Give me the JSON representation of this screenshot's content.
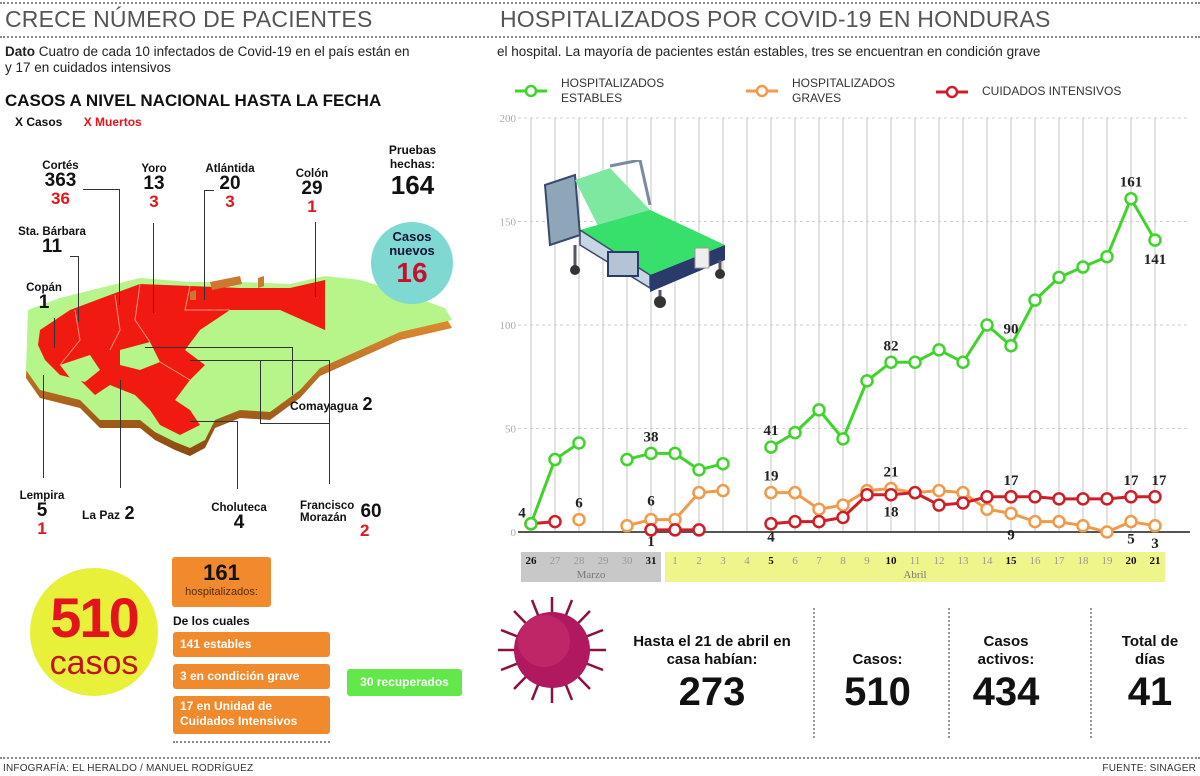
{
  "left_title": "CRECE NÚMERO DE PACIENTES",
  "right_title": "HOSPITALIZADOS POR COVID-19 EN HONDURAS",
  "dato": {
    "label": "Dato",
    "text_left": "Cuatro de cada 10 infectados de Covid-19 en el país están en",
    "text_left_line2": "y 17 en cuidados intensivos",
    "text_right": "el hospital. La mayoría de pacientes están estables, tres se encuentran en condición grave"
  },
  "map_section": {
    "heading": "CASOS A NIVEL NACIONAL HASTA  LA FECHA",
    "legend_cases": "X Casos",
    "legend_deaths": "X Muertos",
    "departments": [
      {
        "name": "Cortés",
        "cases": "363",
        "deaths": "36"
      },
      {
        "name": "Yoro",
        "cases": "13",
        "deaths": "3"
      },
      {
        "name": "Atlántida",
        "cases": "20",
        "deaths": "3"
      },
      {
        "name": "Colón",
        "cases": "29",
        "deaths": "1"
      },
      {
        "name": "Sta. Bárbara",
        "cases": "11",
        "deaths": ""
      },
      {
        "name": "Copán",
        "cases": "1",
        "deaths": ""
      },
      {
        "name": "Comayagua",
        "cases": "2",
        "deaths": ""
      },
      {
        "name": "Lempira",
        "cases": "5",
        "deaths": "1"
      },
      {
        "name": "La Paz",
        "cases": "2",
        "deaths": ""
      },
      {
        "name": "Choluteca",
        "cases": "4",
        "deaths": ""
      },
      {
        "name": "Francisco Morazán",
        "cases": "60",
        "deaths": "2"
      }
    ],
    "tests_label": "Pruebas hechas:",
    "tests_value": "164",
    "new_cases_label": "Casos nuevos",
    "new_cases_value": "16"
  },
  "summary": {
    "total_cases": "510",
    "total_cases_label": "casos",
    "hospitalized_value": "161",
    "hospitalized_label": "hospitalizados:",
    "of_which": "De los cuales",
    "stable": "141 estables",
    "grave": "3 en condición grave",
    "icu": "17 en Unidad de Cuidados Intensivos",
    "recovered": "30 recuperados"
  },
  "credit_left": "INFOGRAFÍA: EL HERALDO / MANUEL RODRÍGUEZ",
  "credit_right": "FUENTE: SINAGER",
  "bottom_stats": [
    {
      "label": "Hasta el 21 de abril en casa habían:",
      "value": "273"
    },
    {
      "label": "Casos:",
      "value": "510"
    },
    {
      "label": "Casos activos:",
      "value": "434"
    },
    {
      "label": "Total de días",
      "value": "41"
    }
  ],
  "colors": {
    "stable": "#3ed42a",
    "grave": "#f09a4a",
    "icu": "#d01e28",
    "red_map": "#f01a10",
    "green_map": "#b6f58a",
    "orange_box": "#f08a2c",
    "march_band": "#c8c8c8",
    "april_band": "#eef58a"
  },
  "chart_data": {
    "type": "line",
    "title": "HOSPITALIZADOS POR COVID-19 EN HONDURAS",
    "xlabel": "",
    "ylabel": "",
    "ylim": [
      0,
      200
    ],
    "yticks": [
      0,
      50,
      100,
      150,
      200
    ],
    "grid": true,
    "legend_position": "top",
    "x": [
      "26",
      "27",
      "28",
      "29",
      "30",
      "31",
      "1",
      "2",
      "3",
      "4",
      "5",
      "6",
      "7",
      "8",
      "9",
      "10",
      "11",
      "12",
      "13",
      "14",
      "15",
      "16",
      "17",
      "18",
      "19",
      "20",
      "21"
    ],
    "bold_ticks": [
      "26",
      "31",
      "5",
      "10",
      "15",
      "20",
      "21"
    ],
    "month_labels": [
      {
        "label": "Marzo",
        "from": "26",
        "to": "31"
      },
      {
        "label": "Abril",
        "from": "1",
        "to": "21"
      }
    ],
    "series": [
      {
        "name": "HOSPITALIZADOS ESTABLES",
        "color": "#3ed42a",
        "values": [
          4,
          35,
          43,
          null,
          35,
          38,
          38,
          30,
          33,
          null,
          41,
          48,
          59,
          45,
          73,
          82,
          82,
          88,
          82,
          100,
          90,
          112,
          123,
          128,
          133,
          161,
          141
        ]
      },
      {
        "name": "HOSPITALIZADOS GRAVES",
        "color": "#f09a4a",
        "values": [
          null,
          null,
          6,
          null,
          3,
          6,
          6,
          19,
          20,
          null,
          19,
          19,
          11,
          13,
          20,
          21,
          19,
          20,
          19,
          11,
          9,
          5,
          5,
          3,
          0,
          5,
          3
        ]
      },
      {
        "name": "CUIDADOS INTENSIVOS",
        "color": "#d01e28",
        "values": [
          4,
          5,
          null,
          null,
          null,
          1,
          1,
          1,
          null,
          null,
          4,
          5,
          5,
          7,
          18,
          18,
          19,
          13,
          14,
          17,
          17,
          17,
          16,
          16,
          16,
          17,
          17
        ]
      }
    ],
    "annotations": [
      {
        "x": "26",
        "text": "4"
      },
      {
        "x": "28",
        "text": "6"
      },
      {
        "x": "31",
        "text": "38"
      },
      {
        "x": "31",
        "text": "6"
      },
      {
        "x": "31",
        "text": "1"
      },
      {
        "x": "5",
        "text": "41"
      },
      {
        "x": "5",
        "text": "19"
      },
      {
        "x": "5",
        "text": "4"
      },
      {
        "x": "10",
        "text": "82"
      },
      {
        "x": "10",
        "text": "21"
      },
      {
        "x": "10",
        "text": "18"
      },
      {
        "x": "15",
        "text": "90"
      },
      {
        "x": "15",
        "text": "17"
      },
      {
        "x": "15",
        "text": "9"
      },
      {
        "x": "20",
        "text": "161"
      },
      {
        "x": "20",
        "text": "17"
      },
      {
        "x": "20",
        "text": "5"
      },
      {
        "x": "21",
        "text": "141"
      },
      {
        "x": "21",
        "text": "17"
      },
      {
        "x": "21",
        "text": "3"
      }
    ]
  }
}
